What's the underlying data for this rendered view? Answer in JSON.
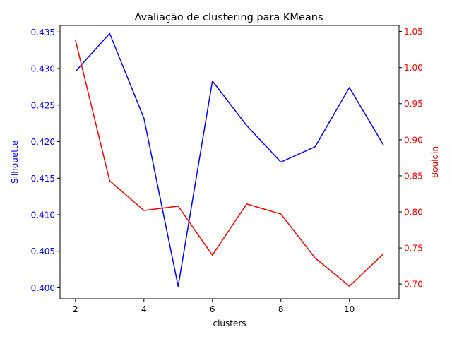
{
  "chart_data": {
    "type": "line",
    "title": "Avaliação de clustering para KMeans",
    "xlabel": "clusters",
    "x": [
      2,
      3,
      4,
      5,
      6,
      7,
      8,
      9,
      10,
      11
    ],
    "xlim": [
      1.55,
      11.45
    ],
    "xticks": [
      2,
      4,
      6,
      8,
      10
    ],
    "grid": false,
    "left_axis": {
      "label": "Silhouette",
      "color": "#0000ff",
      "ylim": [
        0.3985,
        0.4359
      ],
      "ticks": [
        0.4,
        0.405,
        0.41,
        0.415,
        0.42,
        0.425,
        0.43,
        0.435
      ],
      "tick_labels": [
        "0.400",
        "0.405",
        "0.410",
        "0.415",
        "0.420",
        "0.425",
        "0.430",
        "0.435"
      ]
    },
    "right_axis": {
      "label": "Bouldin",
      "color": "#ff0000",
      "ylim": [
        0.6796,
        1.0584
      ],
      "ticks": [
        0.7,
        0.75,
        0.8,
        0.85,
        0.9,
        0.95,
        1.0,
        1.05
      ],
      "tick_labels": [
        "0.70",
        "0.75",
        "0.80",
        "0.85",
        "0.90",
        "0.95",
        "1.00",
        "1.05"
      ]
    },
    "series": [
      {
        "axis": "left",
        "color": "#0000ff",
        "values": [
          0.4296,
          0.4348,
          0.4232,
          0.4002,
          0.4283,
          0.4222,
          0.4172,
          0.4193,
          0.4274,
          0.4195
        ]
      },
      {
        "axis": "right",
        "color": "#ff0000",
        "values": [
          1.038,
          0.843,
          0.802,
          0.808,
          0.74,
          0.811,
          0.797,
          0.736,
          0.697,
          0.742
        ]
      }
    ]
  }
}
